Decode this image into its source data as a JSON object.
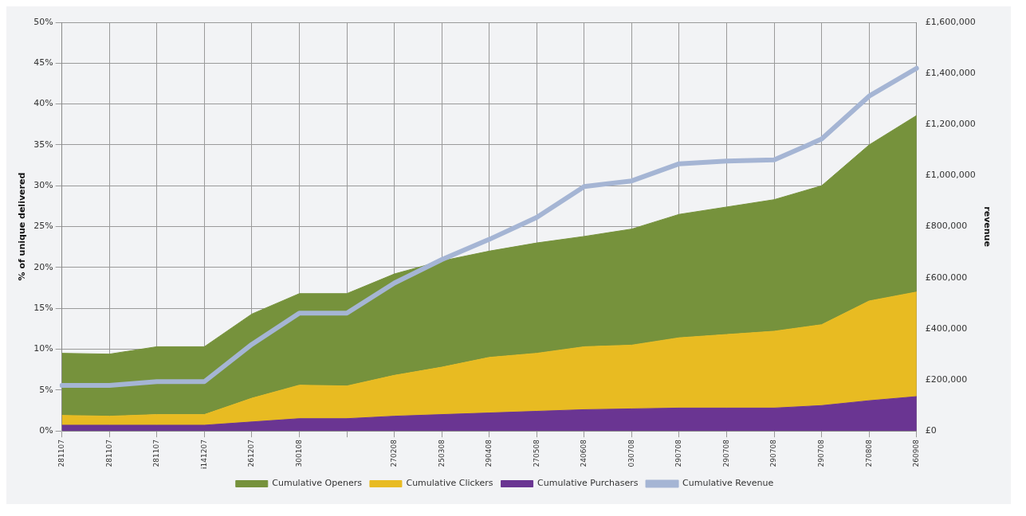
{
  "chart_data": {
    "type": "area",
    "stacked": true,
    "xlabel": null,
    "ylabel": "% of unique delivered",
    "y2label": "revenue",
    "categories": [
      "281107",
      "281107",
      "281107",
      "i141207",
      "261207",
      "300108",
      null,
      "270208",
      "250308",
      "290408",
      "270508",
      "240608",
      "030708",
      "290708",
      "290708",
      "290708",
      "290708",
      "270808",
      "260908"
    ],
    "series": [
      {
        "name": "Cumulative Purchasers",
        "color": "#6a3592",
        "values": [
          0.7,
          0.7,
          0.7,
          0.7,
          1.1,
          1.5,
          1.5,
          1.8,
          2.0,
          2.2,
          2.4,
          2.6,
          2.7,
          2.8,
          2.8,
          2.8,
          3.1,
          3.7,
          4.2
        ]
      },
      {
        "name": "Cumulative Clickers",
        "color": "#e8bb22",
        "values": [
          1.2,
          1.1,
          1.3,
          1.3,
          2.9,
          4.1,
          4.0,
          5.0,
          5.8,
          6.8,
          7.1,
          7.7,
          7.8,
          8.6,
          9.0,
          9.4,
          9.9,
          12.2,
          12.8
        ]
      },
      {
        "name": "Cumulative Openers",
        "color": "#76923c",
        "values": [
          7.6,
          7.6,
          8.3,
          8.3,
          10.3,
          11.2,
          11.3,
          12.4,
          13.0,
          13.0,
          13.5,
          13.5,
          14.2,
          15.1,
          15.6,
          16.1,
          17.0,
          19.1,
          21.6
        ]
      },
      {
        "name": "Cumulative Revenue",
        "type": "line",
        "axis": "y2",
        "color": "#a5b5d4",
        "values": [
          178000,
          178000,
          193000,
          193000,
          339000,
          461000,
          461000,
          579000,
          671000,
          750000,
          836000,
          957000,
          979000,
          1046000,
          1057000,
          1061000,
          1143000,
          1311000,
          1420000
        ]
      }
    ],
    "ylim": [
      0,
      50
    ],
    "yticks": [
      {
        "value": 0,
        "label": "0%"
      },
      {
        "value": 5,
        "label": "5%"
      },
      {
        "value": 10,
        "label": "10%"
      },
      {
        "value": 15,
        "label": "15%"
      },
      {
        "value": 20,
        "label": "20%"
      },
      {
        "value": 25,
        "label": "25%"
      },
      {
        "value": 30,
        "label": "30%"
      },
      {
        "value": 35,
        "label": "35%"
      },
      {
        "value": 40,
        "label": "40%"
      },
      {
        "value": 45,
        "label": "45%"
      },
      {
        "value": 50,
        "label": "50%"
      }
    ],
    "y2lim": [
      0,
      1600000
    ],
    "y2ticks": [
      {
        "value": 0,
        "label": "£0"
      },
      {
        "value": 200000,
        "label": "£200,000"
      },
      {
        "value": 400000,
        "label": "£400,000"
      },
      {
        "value": 600000,
        "label": "£600,000"
      },
      {
        "value": 800000,
        "label": "£800,000"
      },
      {
        "value": 1000000,
        "label": "£1,000,000"
      },
      {
        "value": 1200000,
        "label": "£1,200,000"
      },
      {
        "value": 1400000,
        "label": "£1,400,000"
      },
      {
        "value": 1600000,
        "label": "£1,600,000"
      }
    ],
    "grid": true,
    "legend": "bottom",
    "marker": "none"
  }
}
